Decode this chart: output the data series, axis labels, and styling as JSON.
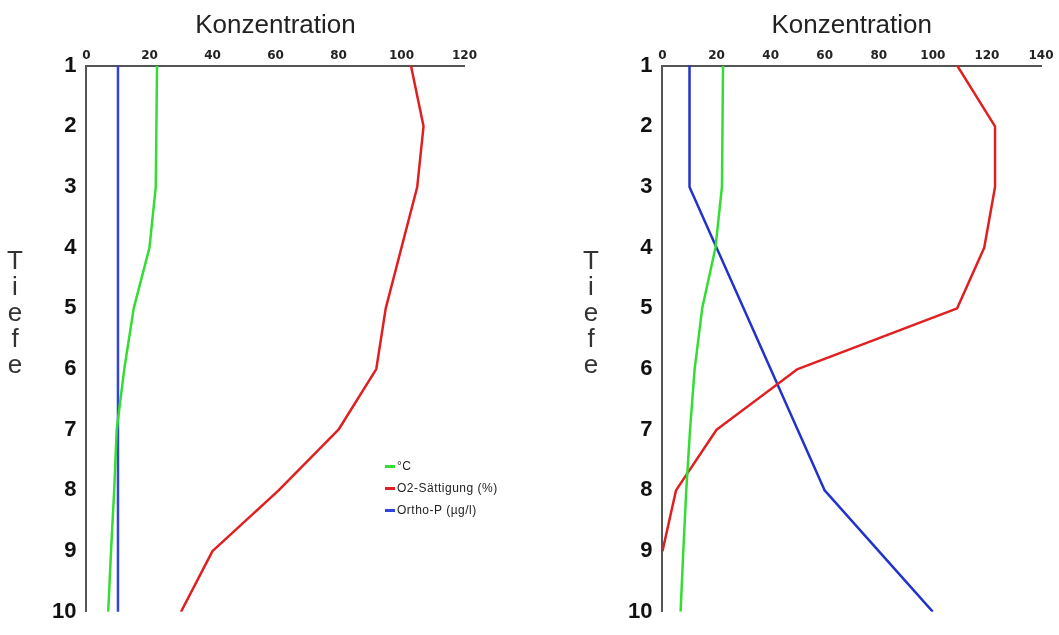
{
  "chart_data": [
    {
      "type": "line",
      "xlabel": "Konzentration",
      "ylabel": "Tiefe",
      "xlim": [
        0,
        120
      ],
      "xticks": [
        0,
        20,
        40,
        60,
        80,
        100,
        120
      ],
      "ylim": [
        10,
        1
      ],
      "yticks": [
        1,
        2,
        3,
        4,
        5,
        6,
        7,
        8,
        9,
        10
      ],
      "grid": false,
      "legend": "bottom right",
      "marker": "none",
      "series": [
        {
          "name": "°C",
          "color": "#33dd33",
          "x": [
            22.4,
            22.2,
            22,
            20,
            15,
            12,
            9.6,
            8.8,
            7.8,
            6.9
          ],
          "values": [
            1,
            2,
            3,
            4,
            5,
            6,
            7,
            8,
            9,
            10
          ]
        },
        {
          "name": "O2-Sättigung (%)",
          "color": "#e02020",
          "x": [
            103,
            107,
            105,
            100,
            95,
            92,
            80,
            61,
            40,
            30
          ],
          "values": [
            1,
            2,
            3,
            4,
            5,
            6,
            7,
            8,
            9,
            10
          ]
        },
        {
          "name": "Ortho-P (µg/l)",
          "color": "#3344dd",
          "x": [
            10,
            10,
            10,
            10,
            10,
            10,
            10,
            10,
            10,
            10
          ],
          "values": [
            1,
            2,
            3,
            4,
            5,
            6,
            7,
            8,
            9,
            10
          ]
        }
      ]
    },
    {
      "type": "line",
      "xlabel": "Konzentration",
      "ylabel": "Tiefe",
      "xlim": [
        0,
        140
      ],
      "xticks": [
        0,
        20,
        40,
        60,
        80,
        100,
        120,
        140
      ],
      "ylim": [
        10,
        1
      ],
      "yticks": [
        1,
        2,
        3,
        4,
        5,
        6,
        7,
        8,
        9,
        10
      ],
      "grid": false,
      "marker": "none",
      "series": [
        {
          "color": "#33dd33",
          "x": [
            22.4,
            22.2,
            22,
            19.6,
            14.7,
            11.9,
            10.2,
            8.8,
            7.7,
            6.7
          ],
          "values": [
            1,
            2,
            3,
            4,
            5,
            6,
            7,
            8,
            9,
            10
          ]
        },
        {
          "color": "#e02020",
          "x": [
            109,
            123,
            123,
            119,
            109,
            50,
            20,
            5,
            0
          ],
          "values": [
            1,
            2,
            3,
            4,
            5,
            6,
            7,
            8,
            9
          ]
        },
        {
          "color": "#2233cc",
          "x": [
            10,
            10,
            10,
            20,
            30,
            40,
            50,
            60,
            80,
            100
          ],
          "values": [
            1,
            2,
            3,
            4,
            5,
            6,
            7,
            8,
            9,
            10
          ]
        }
      ]
    }
  ]
}
